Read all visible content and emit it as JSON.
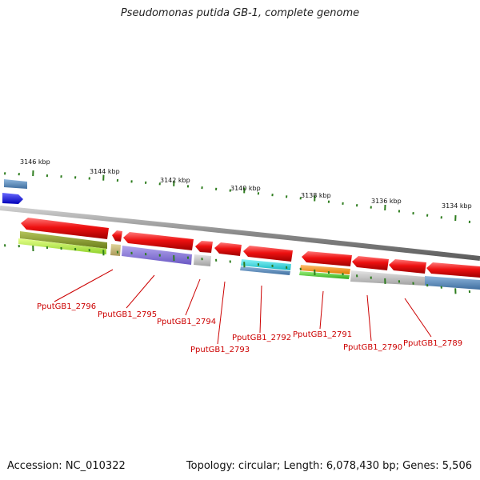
{
  "title": "Pseudomonas putida GB-1, complete genome",
  "footer": {
    "accession": "Accession: NC_010322",
    "summary": "Topology: circular; Length: 6,078,430 bp; Genes: 5,506"
  },
  "kbp_labels": [
    "3146 kbp",
    "3144 kbp",
    "3142 kbp",
    "3140 kbp",
    "3138 kbp",
    "3136 kbp",
    "3134 kbp"
  ],
  "gene_labels": [
    "PputGB1_2796",
    "PputGB1_2795",
    "PputGB1_2794",
    "PputGB1_2793",
    "PputGB1_2792",
    "PputGB1_2791",
    "PputGB1_2790",
    "PputGB1_2789"
  ],
  "colors": {
    "feature_red": "#ee1111",
    "label_red": "#cc0000",
    "tick_green": "#2e7d1e",
    "backbone": "#888888",
    "strand_blue": "#1a1aee"
  }
}
